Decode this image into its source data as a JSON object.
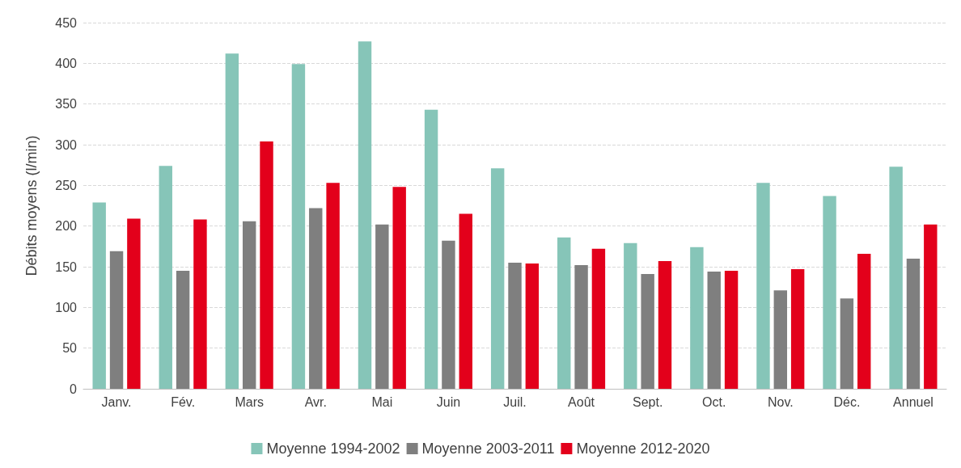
{
  "chart_data": {
    "type": "bar",
    "ylabel": "Débits moyens (l/min)",
    "categories": [
      "Janv.",
      "Fév.",
      "Mars",
      "Avr.",
      "Mai",
      "Juin",
      "Juil.",
      "Août",
      "Sept.",
      "Oct.",
      "Nov.",
      "Déc.",
      "Annuel"
    ],
    "series": [
      {
        "name": "Moyenne 1994-2002",
        "color": "#86c5b8",
        "values": [
          229,
          274,
          412,
          399,
          427,
          343,
          271,
          186,
          179,
          174,
          253,
          237,
          273
        ]
      },
      {
        "name": "Moyenne 2003-2011",
        "color": "#7f7f7f",
        "values": [
          169,
          145,
          206,
          222,
          202,
          182,
          155,
          152,
          141,
          144,
          121,
          111,
          160
        ]
      },
      {
        "name": "Moyenne 2012-2020",
        "color": "#e3001b",
        "values": [
          209,
          208,
          304,
          253,
          248,
          215,
          154,
          172,
          157,
          145,
          147,
          166,
          202
        ]
      }
    ],
    "ylim": [
      0,
      450
    ],
    "yticks": [
      0,
      50,
      100,
      150,
      200,
      250,
      300,
      350,
      400,
      450
    ],
    "grid": "y",
    "legend": "bottom"
  }
}
